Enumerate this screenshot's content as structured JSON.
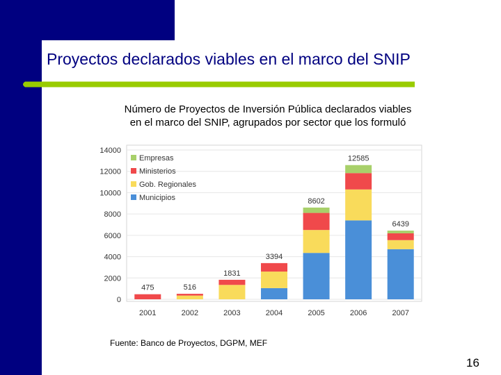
{
  "slide": {
    "title": "Proyectos declarados viables en el marco del SNIP",
    "subtitle_line1": "Número de Proyectos de Inversión Pública declarados viables",
    "subtitle_line2": "en el marco del SNIP, agrupados por sector que los formuló",
    "source": "Fuente: Banco de Proyectos, DGPM, MEF",
    "page_number": "16"
  },
  "colors": {
    "navy": "#000080",
    "green_accent": "#99CC00",
    "municipios": "#4A8FD8",
    "gob_regionales": "#F9DB5B",
    "ministerios": "#F0494B",
    "empresas": "#A8D06A"
  },
  "chart_data": {
    "type": "bar",
    "stacked": true,
    "categories": [
      "2001",
      "2002",
      "2003",
      "2004",
      "2005",
      "2006",
      "2007"
    ],
    "series": [
      {
        "name": "Municipios",
        "color": "#4A8FD8",
        "values": [
          0,
          0,
          0,
          1050,
          4350,
          7400,
          4700
        ]
      },
      {
        "name": "Gob. Regionales",
        "color": "#F9DB5B",
        "values": [
          0,
          350,
          1350,
          1550,
          2150,
          2900,
          850
        ]
      },
      {
        "name": "Ministerios",
        "color": "#F0494B",
        "values": [
          475,
          166,
          481,
          794,
          1602,
          1535,
          639
        ]
      },
      {
        "name": "Empresas",
        "color": "#A8D06A",
        "values": [
          0,
          0,
          0,
          0,
          500,
          750,
          250
        ]
      }
    ],
    "totals": [
      475,
      516,
      1831,
      3394,
      8602,
      12585,
      6439
    ],
    "total_labels": [
      "475",
      "516",
      "1831",
      "3394",
      "8602",
      "12585",
      "6439"
    ],
    "y_ticks": [
      "0",
      "2000",
      "4000",
      "6000",
      "8000",
      "10000",
      "12000",
      "14000"
    ],
    "ylim": [
      0,
      14000
    ],
    "legend_position": "top-left",
    "legend": [
      "Empresas",
      "Ministerios",
      "Gob. Regionales",
      "Municipios"
    ],
    "xlabel": "",
    "ylabel": ""
  }
}
